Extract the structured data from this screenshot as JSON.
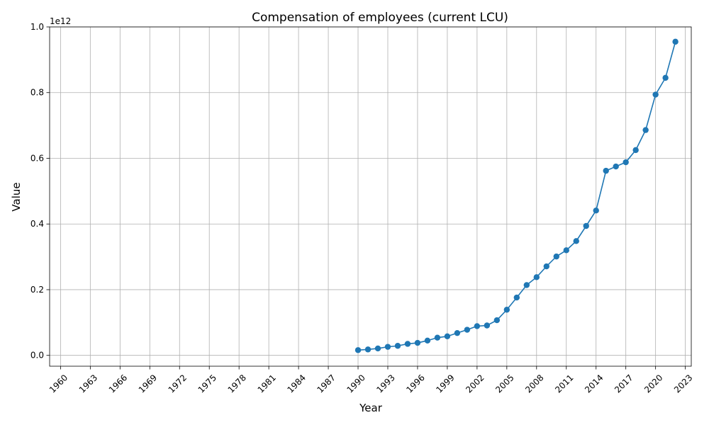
{
  "chart_data": {
    "type": "line",
    "title": "Compensation of employees (current LCU)",
    "xlabel": "Year",
    "ylabel": "Value",
    "y_offset_label": "1e12",
    "xlim": [
      1958.9,
      2023.6
    ],
    "ylim": [
      -0.033,
      1.0
    ],
    "x_ticks": [
      "1960",
      "1963",
      "1966",
      "1969",
      "1972",
      "1975",
      "1978",
      "1981",
      "1984",
      "1987",
      "1990",
      "1993",
      "1996",
      "1999",
      "2002",
      "2005",
      "2008",
      "2011",
      "2014",
      "2017",
      "2020",
      "2023"
    ],
    "y_ticks": [
      "0.0",
      "0.2",
      "0.4",
      "0.6",
      "0.8",
      "1.0"
    ],
    "grid": true,
    "line_color": "#1f77b4",
    "series": [
      {
        "x": [
          1990,
          1991,
          1992,
          1993,
          1994,
          1995,
          1996,
          1997,
          1998,
          1999,
          2000,
          2001,
          2002,
          2003,
          2004,
          2005,
          2006,
          2007,
          2008,
          2009,
          2010,
          2011,
          2012,
          2013,
          2014,
          2015,
          2016,
          2017,
          2018,
          2019,
          2020,
          2021,
          2022
        ],
        "values": [
          0.016,
          0.018,
          0.021,
          0.026,
          0.029,
          0.035,
          0.038,
          0.045,
          0.054,
          0.058,
          0.068,
          0.078,
          0.089,
          0.091,
          0.107,
          0.139,
          0.176,
          0.214,
          0.238,
          0.271,
          0.301,
          0.32,
          0.348,
          0.394,
          0.441,
          0.562,
          0.575,
          0.588,
          0.625,
          0.686,
          0.794,
          0.845,
          0.955
        ]
      }
    ]
  }
}
